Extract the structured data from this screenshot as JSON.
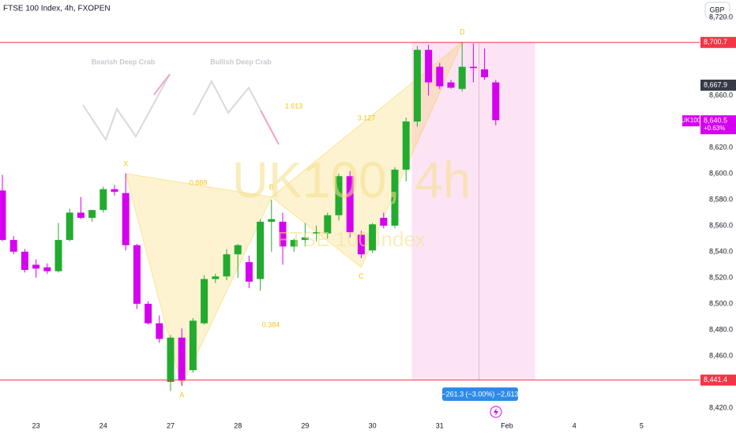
{
  "chart_data": {
    "type": "candlestick",
    "title": "FTSE 100 Index, 4h, FXOPEN",
    "currency": "GBP",
    "watermark": "UK100, 4h",
    "watermark_subtitle": "FTSE 100 Index",
    "up_color": "#22ab2f",
    "down_color": "#d500f0",
    "categories": [
      null,
      null,
      null,
      "23",
      null,
      null,
      null,
      null,
      null,
      "24",
      null,
      null,
      null,
      null,
      null,
      "27",
      null,
      null,
      null,
      null,
      null,
      "28",
      null,
      null,
      null,
      null,
      null,
      "29",
      null,
      null,
      null,
      null,
      null,
      "30",
      null,
      null,
      null,
      null,
      null,
      "31",
      null,
      null,
      null,
      null,
      null,
      "Feb",
      null,
      null,
      null,
      null,
      null,
      "4",
      null,
      null,
      null,
      null,
      null,
      "5",
      null,
      null
    ],
    "open": [
      8587,
      8549,
      8540,
      8530,
      8528,
      8525,
      8549,
      8570,
      8566,
      8572,
      8588,
      8585,
      8545,
      8500,
      8485,
      8440,
      8474,
      8449,
      8485,
      8519,
      8521,
      8538,
      8532,
      8519,
      8563,
      8563,
      8544,
      8549,
      8554,
      8554,
      8568,
      8598,
      8553,
      8541,
      8566,
      8560,
      8603,
      8640,
      8695,
      8682,
      8670,
      8665,
      8682,
      8680,
      8670,
      null,
      null,
      null,
      null,
      null,
      null,
      null,
      null,
      null,
      null,
      null,
      null,
      null,
      null,
      null
    ],
    "high": [
      8599,
      8552,
      8542,
      8534,
      8531,
      8562,
      8573,
      8582,
      8572,
      8590,
      8591,
      8600,
      8546,
      8502,
      8491,
      8476,
      8481,
      8489,
      8522,
      8523,
      8542,
      8546,
      8537,
      8565,
      8580,
      8570,
      8550,
      8562,
      8560,
      8570,
      8600,
      8602,
      8556,
      8562,
      8570,
      8605,
      8643,
      8698,
      8699,
      8685,
      8672,
      8701,
      8700,
      8696,
      8672,
      null,
      null,
      null,
      null,
      null,
      null,
      null,
      null,
      null,
      null,
      null,
      null,
      null,
      null,
      null
    ],
    "low": [
      8548,
      8538,
      8524,
      8520,
      8523,
      8524,
      8548,
      8565,
      8563,
      8570,
      8583,
      8541,
      8496,
      8484,
      8470,
      8433,
      8437,
      8447,
      8484,
      8516,
      8518,
      8520,
      8512,
      8510,
      8540,
      8530,
      8540,
      8544,
      8548,
      8550,
      8564,
      8551,
      8535,
      8539,
      8558,
      8558,
      8594,
      8636,
      8660,
      8665,
      8665,
      8663,
      8670,
      8672,
      8637,
      null,
      null,
      null,
      null,
      null,
      null,
      null,
      null,
      null,
      null,
      null,
      null,
      null,
      null,
      null
    ],
    "close": [
      8549,
      8540,
      8526,
      8527,
      8525,
      8549,
      8570,
      8566,
      8572,
      8588,
      8586,
      8545,
      8500,
      8485,
      8473,
      8474,
      8441,
      8487,
      8519,
      8521,
      8538,
      8545,
      8517,
      8563,
      8565,
      8544,
      8549,
      8551,
      8555,
      8568,
      8598,
      8555,
      8538,
      8561,
      8560,
      8603,
      8640,
      8695,
      8670,
      8667,
      8666,
      8682,
      8681,
      8674,
      8641,
      null,
      null,
      null,
      null,
      null,
      null,
      null,
      null,
      null,
      null,
      null,
      null,
      null,
      null,
      null
    ],
    "ylim": [
      8412.1,
      8733.3
    ],
    "yticks": [
      {
        "value": 8420,
        "label": "8,420.0"
      },
      {
        "value": 8460,
        "label": "8,460.0"
      },
      {
        "value": 8480,
        "label": "8,480.0"
      },
      {
        "value": 8500,
        "label": "8,500.0"
      },
      {
        "value": 8520,
        "label": "8,520.0"
      },
      {
        "value": 8540,
        "label": "8,540.0"
      },
      {
        "value": 8560,
        "label": "8,560.0"
      },
      {
        "value": 8580,
        "label": "8,580.0"
      },
      {
        "value": 8600,
        "label": "8,600.0"
      },
      {
        "value": 8620,
        "label": "8,620.0"
      },
      {
        "value": 8660,
        "label": "8,660.0"
      },
      {
        "value": 8720,
        "label": "8,720.0"
      }
    ],
    "price_lines": [
      {
        "value": 8700.7,
        "label": "8,700.7",
        "color": "#f23645"
      },
      {
        "value": 8441.4,
        "label": "8,441.4",
        "color": "#f23645"
      }
    ],
    "price_badges": [
      {
        "value": 8667.9,
        "label": "8,667.9",
        "color": "#363a45"
      }
    ],
    "last_price": {
      "symbol": "UK100",
      "value": 8640.5,
      "label": "8,640.5",
      "change": "+0.63%",
      "color": "#d500f0"
    },
    "pattern": {
      "points": [
        {
          "label": "X",
          "index": 11,
          "price": 8600
        },
        {
          "label": "A",
          "index": 16,
          "price": 8437
        },
        {
          "label": "B",
          "index": 24,
          "price": 8582
        },
        {
          "label": "C",
          "index": 32,
          "price": 8528
        },
        {
          "label": "D",
          "index": 41,
          "price": 8701
        }
      ],
      "ratios": [
        "0.888",
        "0.384",
        "1.613",
        "3.127"
      ],
      "color": "#f5c518"
    },
    "templates": [
      "Bearish Deep Crab",
      "Bullish Deep Crab"
    ],
    "measure": "−261.3 (−3.00%) −2,613"
  }
}
